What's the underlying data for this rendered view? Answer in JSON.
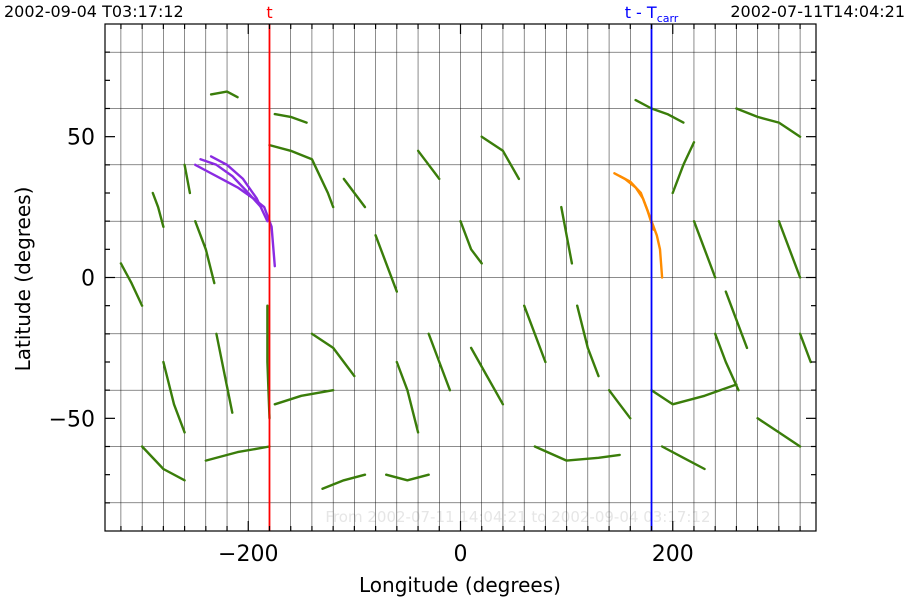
{
  "header": {
    "left_time": "2002-09-04 T03:17:12",
    "right_time": "2002-07-11T14:04:21",
    "t_marker": "t",
    "tcarr_marker_prefix": "t - T",
    "tcarr_marker_sub": "carr"
  },
  "watermark": "From 2002-07-11 14:04:21 to 2002-09-04 03:17:12",
  "colors": {
    "background": "#ffffff",
    "axis": "#000000",
    "grid": "#000000",
    "fibrils": "#3a7d0a",
    "highlight_t": "#8a2be2",
    "highlight_tcarr": "#ff8c00",
    "t_line": "#ff0000",
    "tcarr_line": "#0000ff",
    "watermark": "#e6e6e6"
  },
  "chart_data": {
    "type": "scatter",
    "title": "",
    "xlabel": "Longitude (degrees)",
    "ylabel": "Latitude (degrees)",
    "xlim": [
      -335,
      335
    ],
    "ylim": [
      -90,
      90
    ],
    "xticks": [
      -200,
      0,
      200
    ],
    "yticks": [
      -50,
      0,
      50
    ],
    "grid": true,
    "grid_step_x": 20,
    "grid_step_y": 20,
    "vertical_lines": [
      {
        "x": -180,
        "label": "t",
        "color": "#ff0000"
      },
      {
        "x": 180,
        "label": "t - Tcarr",
        "color": "#0000ff"
      }
    ],
    "series": [
      {
        "color": "#3a7d0a",
        "segments": [
          [
            [
              -235,
              65
            ],
            [
              -220,
              66
            ],
            [
              -210,
              64
            ]
          ],
          [
            [
              -175,
              58
            ],
            [
              -160,
              57
            ],
            [
              -145,
              55
            ]
          ],
          [
            [
              -180,
              47
            ],
            [
              -160,
              45
            ],
            [
              -140,
              42
            ],
            [
              -125,
              30
            ],
            [
              -120,
              25
            ]
          ],
          [
            [
              -290,
              30
            ],
            [
              -285,
              25
            ],
            [
              -280,
              18
            ]
          ],
          [
            [
              -320,
              5
            ],
            [
              -310,
              -2
            ],
            [
              -300,
              -10
            ]
          ],
          [
            [
              -250,
              20
            ],
            [
              -240,
              10
            ],
            [
              -232,
              -2
            ]
          ],
          [
            [
              -230,
              -20
            ],
            [
              -222,
              -35
            ],
            [
              -215,
              -48
            ]
          ],
          [
            [
              -280,
              -30
            ],
            [
              -270,
              -45
            ],
            [
              -260,
              -55
            ]
          ],
          [
            [
              -300,
              -60
            ],
            [
              -280,
              -68
            ],
            [
              -260,
              -72
            ]
          ],
          [
            [
              -240,
              -65
            ],
            [
              -210,
              -62
            ],
            [
              -180,
              -60
            ]
          ],
          [
            [
              -182,
              -10
            ],
            [
              -182,
              -30
            ],
            [
              -180,
              -50
            ]
          ],
          [
            [
              -175,
              -45
            ],
            [
              -150,
              -42
            ],
            [
              -120,
              -40
            ]
          ],
          [
            [
              -140,
              -20
            ],
            [
              -120,
              -25
            ],
            [
              -100,
              -35
            ]
          ],
          [
            [
              -110,
              35
            ],
            [
              -100,
              30
            ],
            [
              -90,
              25
            ]
          ],
          [
            [
              -80,
              15
            ],
            [
              -70,
              5
            ],
            [
              -60,
              -5
            ]
          ],
          [
            [
              -60,
              -30
            ],
            [
              -50,
              -40
            ],
            [
              -40,
              -55
            ]
          ],
          [
            [
              -30,
              -20
            ],
            [
              -20,
              -30
            ],
            [
              -10,
              -40
            ]
          ],
          [
            [
              -70,
              -70
            ],
            [
              -50,
              -72
            ],
            [
              -30,
              -70
            ]
          ],
          [
            [
              0,
              20
            ],
            [
              10,
              10
            ],
            [
              20,
              5
            ]
          ],
          [
            [
              10,
              -25
            ],
            [
              25,
              -35
            ],
            [
              40,
              -45
            ]
          ],
          [
            [
              20,
              50
            ],
            [
              40,
              45
            ],
            [
              55,
              35
            ]
          ],
          [
            [
              60,
              -10
            ],
            [
              70,
              -20
            ],
            [
              80,
              -30
            ]
          ],
          [
            [
              70,
              -60
            ],
            [
              100,
              -65
            ],
            [
              130,
              -64
            ],
            [
              150,
              -63
            ]
          ],
          [
            [
              95,
              25
            ],
            [
              100,
              15
            ],
            [
              105,
              5
            ]
          ],
          [
            [
              110,
              -10
            ],
            [
              120,
              -25
            ],
            [
              130,
              -35
            ]
          ],
          [
            [
              140,
              -40
            ],
            [
              150,
              -45
            ],
            [
              160,
              -50
            ]
          ],
          [
            [
              165,
              63
            ],
            [
              180,
              60
            ],
            [
              195,
              58
            ],
            [
              210,
              55
            ]
          ],
          [
            [
              180,
              -40
            ],
            [
              200,
              -45
            ],
            [
              230,
              -42
            ],
            [
              260,
              -38
            ]
          ],
          [
            [
              220,
              20
            ],
            [
              230,
              10
            ],
            [
              240,
              0
            ]
          ],
          [
            [
              240,
              -20
            ],
            [
              250,
              -30
            ],
            [
              262,
              -40
            ]
          ],
          [
            [
              260,
              60
            ],
            [
              280,
              57
            ],
            [
              300,
              55
            ],
            [
              320,
              50
            ]
          ],
          [
            [
              300,
              20
            ],
            [
              310,
              10
            ],
            [
              320,
              0
            ]
          ],
          [
            [
              280,
              -50
            ],
            [
              300,
              -55
            ],
            [
              320,
              -60
            ]
          ],
          [
            [
              190,
              -60
            ],
            [
              210,
              -64
            ],
            [
              230,
              -68
            ]
          ],
          [
            [
              320,
              -20
            ],
            [
              330,
              -30
            ]
          ],
          [
            [
              -130,
              -75
            ],
            [
              -110,
              -72
            ],
            [
              -90,
              -70
            ]
          ],
          [
            [
              -260,
              40
            ],
            [
              -255,
              30
            ]
          ],
          [
            [
              200,
              30
            ],
            [
              210,
              40
            ],
            [
              220,
              48
            ]
          ],
          [
            [
              -40,
              45
            ],
            [
              -30,
              40
            ],
            [
              -20,
              35
            ]
          ],
          [
            [
              250,
              -5
            ],
            [
              260,
              -15
            ],
            [
              270,
              -25
            ]
          ]
        ]
      },
      {
        "color": "#8a2be2",
        "segments": [
          [
            [
              -250,
              40
            ],
            [
              -240,
              38
            ],
            [
              -225,
              35
            ],
            [
              -210,
              32
            ],
            [
              -195,
              28
            ],
            [
              -185,
              25
            ],
            [
              -178,
              18
            ],
            [
              -175,
              4
            ]
          ],
          [
            [
              -245,
              42
            ],
            [
              -230,
              40
            ],
            [
              -215,
              36
            ],
            [
              -200,
              30
            ],
            [
              -188,
              25
            ]
          ],
          [
            [
              -235,
              43
            ],
            [
              -220,
              40
            ],
            [
              -205,
              35
            ],
            [
              -192,
              28
            ],
            [
              -182,
              20
            ]
          ]
        ]
      },
      {
        "color": "#ff8c00",
        "segments": [
          [
            [
              145,
              37
            ],
            [
              155,
              35
            ],
            [
              165,
              32
            ],
            [
              172,
              28
            ],
            [
              178,
              22
            ],
            [
              185,
              15
            ],
            [
              188,
              10
            ],
            [
              190,
              0
            ]
          ],
          [
            [
              150,
              36
            ],
            [
              160,
              34
            ],
            [
              170,
              30
            ],
            [
              176,
              24
            ],
            [
              182,
              17
            ]
          ]
        ]
      }
    ]
  }
}
